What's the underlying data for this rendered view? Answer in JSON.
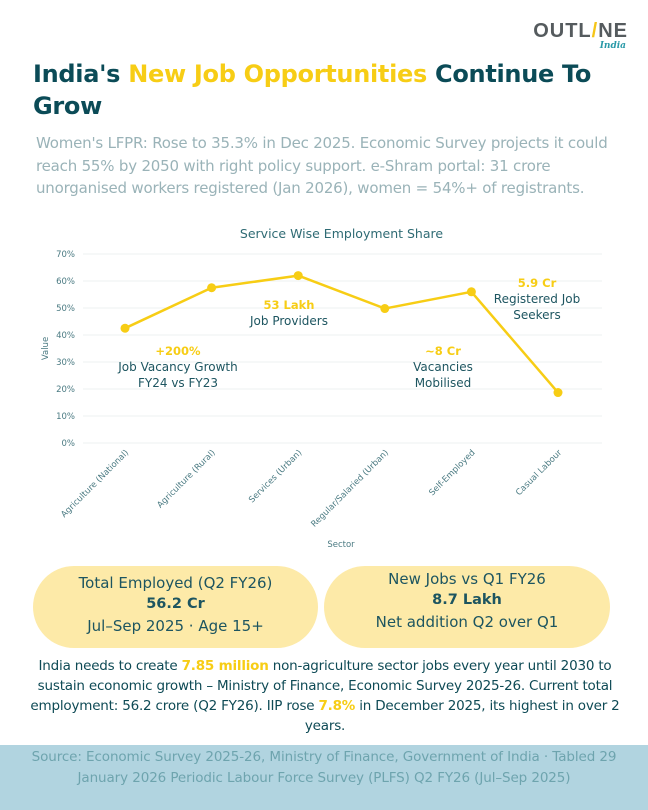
{
  "logo": {
    "main_before": "OUTL",
    "slash": "/",
    "main_after": "NE",
    "sub": "India"
  },
  "title": {
    "part1": "India's ",
    "highlight": "New Job Opportunities",
    "part2": " Continue To Grow"
  },
  "subtitle": "Women's LFPR: Rose to 35.3% in Dec 2025. Economic Survey projects it could reach 55% by 2050 with right policy support. e-Shram portal: 31 crore unorganised workers registered (Jan 2026), women = 54%+ of registrants.",
  "colors": {
    "accent": "#f7cd15",
    "primary": "#0b4b57",
    "pill_bg": "#fdeaa8",
    "source_bg": "#b1d4e0"
  },
  "chart_data": {
    "type": "line",
    "title": "Service Wise Employment Share",
    "xlabel": "Sector",
    "ylabel": "Value",
    "categories": [
      "Agriculture (National)",
      "Agriculture (Rural)",
      "Services (Urban)",
      "Regular/Salaried (Urban)",
      "Self-Employed",
      "Casual Labour"
    ],
    "series": [
      {
        "name": "Value",
        "values": [
          42.5,
          57.5,
          62,
          49.8,
          56,
          18.7
        ]
      }
    ],
    "ylim": [
      0,
      70
    ],
    "yticks": [
      0,
      10,
      20,
      30,
      40,
      50,
      60,
      70
    ],
    "ytick_labels": [
      "0%",
      "10%",
      "20%",
      "30%",
      "40%",
      "50%",
      "60%",
      "70%"
    ],
    "grid": true,
    "legend": "none",
    "annotations": [
      {
        "value": "+200%",
        "text_lines": [
          "Job Vacancy Growth",
          "FY24 vs FY23"
        ]
      },
      {
        "value": "53 Lakh",
        "text_lines": [
          "Job Providers"
        ]
      },
      {
        "value": "~8 Cr",
        "text_lines": [
          "Vacancies",
          "Mobilised"
        ]
      },
      {
        "value": "5.9 Cr",
        "text_lines": [
          "Registered Job",
          "Seekers"
        ]
      }
    ]
  },
  "stats": [
    {
      "label": "Total Employed (Q2 FY26)",
      "value": "56.2 Cr",
      "note": "Jul–Sep 2025 · Age 15+"
    },
    {
      "label": "New Jobs vs Q1 FY26",
      "value": "8.7 Lakh",
      "note": "Net addition Q2 over Q1"
    }
  ],
  "footer": {
    "part1": "India needs to create ",
    "highlight1": "7.85 million",
    "part2": " non-agriculture sector jobs every year until 2030 to sustain economic growth – Ministry of Finance, Economic Survey 2025-26. Current total employment: 56.2 crore (Q2 FY26). IIP rose ",
    "highlight2": "7.8%",
    "part3": " in December 2025, its highest in over 2 years."
  },
  "source": "Source: Economic Survey 2025-26, Ministry of Finance, Government of India · Tabled 29 January 2026 Periodic Labour Force Survey (PLFS) Q2 FY26 (Jul–Sep 2025)"
}
